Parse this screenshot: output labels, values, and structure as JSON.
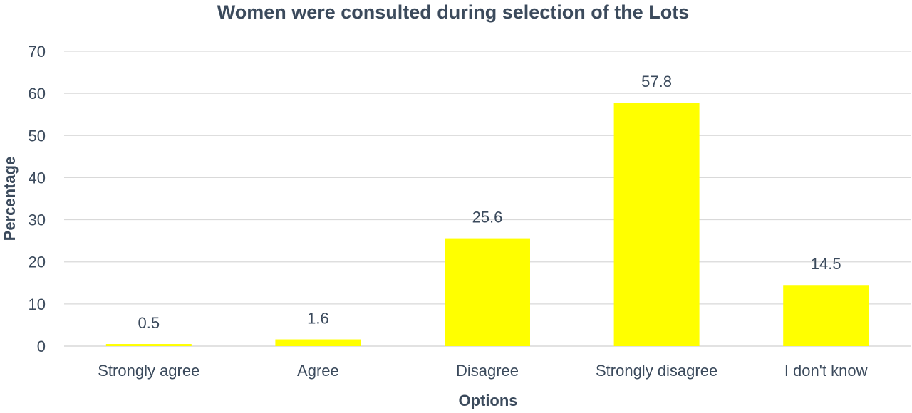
{
  "chart_data": {
    "type": "bar",
    "title": "Women were consulted during selection of the Lots",
    "xlabel": "Options",
    "ylabel": "Percentage",
    "categories": [
      "Strongly agree",
      "Agree",
      "Disagree",
      "Strongly disagree",
      "I don't know"
    ],
    "values": [
      0.5,
      1.6,
      25.6,
      57.8,
      14.5
    ],
    "value_labels": [
      "0.5",
      "1.6",
      "25.6",
      "57.8",
      "14.5"
    ],
    "ylim": [
      0,
      70
    ],
    "yticks": [
      0,
      10,
      20,
      30,
      40,
      50,
      60,
      70
    ],
    "ytick_labels": [
      "0",
      "10",
      "20",
      "30",
      "40",
      "50",
      "60",
      "70"
    ],
    "grid": true,
    "legend": "none",
    "bar_color": "#ffff00"
  }
}
